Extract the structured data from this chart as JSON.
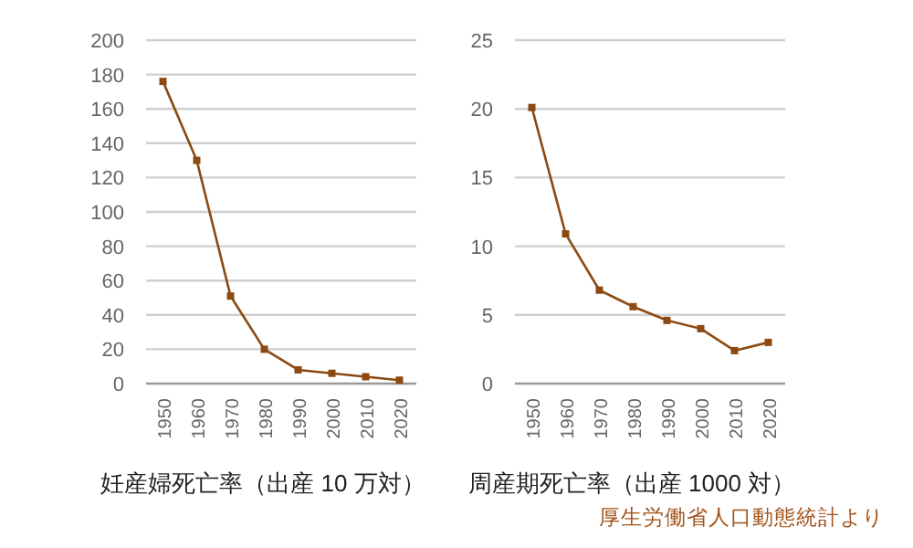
{
  "chart_data": [
    {
      "type": "line",
      "xlabel": "妊産婦死亡率（出産 10 万対）",
      "categories": [
        "1950",
        "1960",
        "1970",
        "1980",
        "1990",
        "2000",
        "2010",
        "2020"
      ],
      "series": [
        {
          "color": "#8c4a12",
          "values": [
            176,
            130,
            51,
            20,
            8,
            6,
            4,
            2
          ]
        }
      ],
      "ylim": [
        0,
        200
      ],
      "yticks": [
        0,
        20,
        40,
        60,
        80,
        100,
        120,
        140,
        160,
        180,
        200
      ],
      "grid": "y",
      "marker": "square"
    },
    {
      "type": "line",
      "xlabel": "周産期死亡率（出産 1000 対）",
      "categories": [
        "1950",
        "1960",
        "1970",
        "1980",
        "1990",
        "2000",
        "2010",
        "2020"
      ],
      "series": [
        {
          "color": "#8c4a12",
          "values": [
            20.1,
            10.9,
            6.8,
            5.6,
            4.6,
            4.0,
            2.4,
            3.0
          ]
        }
      ],
      "ylim": [
        0,
        25
      ],
      "yticks": [
        0,
        5,
        10,
        15,
        20,
        25
      ],
      "grid": "y",
      "marker": "square",
      "annotations": [
        "厚生労働省人口動態統計より"
      ]
    }
  ]
}
